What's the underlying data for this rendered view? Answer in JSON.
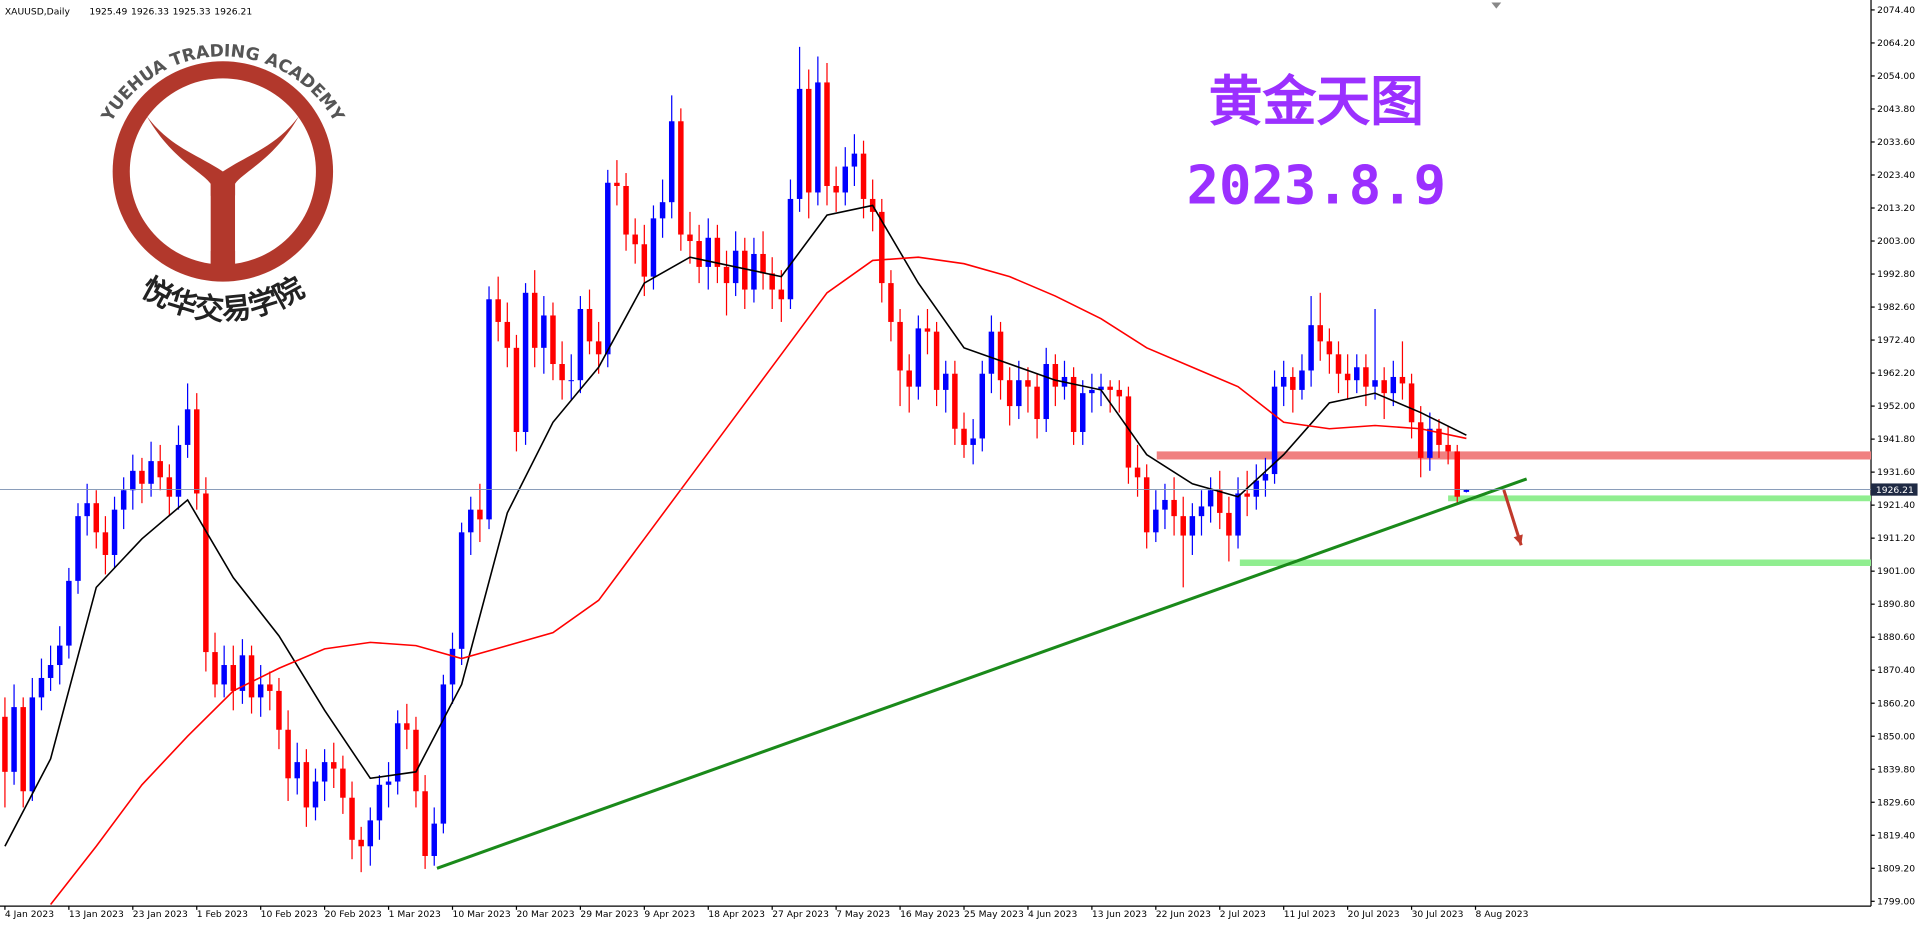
{
  "chart_data": {
    "type": "candlestick",
    "symbol": "XAUUSD,Daily",
    "title": "黄金天图",
    "subtitle": "2023.8.9",
    "title_color": "#9b30ff",
    "watermark": {
      "top": "YUEHUA TRADING ACADEMY",
      "bottom": "悦华交易学院",
      "color": "#b2382c"
    },
    "up_color": "#0000ff",
    "down_color": "#ff0000",
    "ylim": [
      1797.5,
      2076.7
    ],
    "yticks": [
      {
        "value": 2074.4,
        "label": "2074.40"
      },
      {
        "value": 2064.2,
        "label": "2064.20"
      },
      {
        "value": 2054,
        "label": "2054.00"
      },
      {
        "value": 2043.8,
        "label": "2043.80"
      },
      {
        "value": 2033.6,
        "label": "2033.60"
      },
      {
        "value": 2023.4,
        "label": "2023.40"
      },
      {
        "value": 2013.2,
        "label": "2013.20"
      },
      {
        "value": 2003,
        "label": "2003.00"
      },
      {
        "value": 1992.8,
        "label": "1992.80"
      },
      {
        "value": 1982.6,
        "label": "1982.60"
      },
      {
        "value": 1972.4,
        "label": "1972.40"
      },
      {
        "value": 1962.2,
        "label": "1962.20"
      },
      {
        "value": 1952,
        "label": "1952.00"
      },
      {
        "value": 1941.8,
        "label": "1941.80"
      },
      {
        "value": 1931.6,
        "label": "1931.60"
      },
      {
        "value": 1921.4,
        "label": "1921.40"
      },
      {
        "value": 1911.2,
        "label": "1911.20"
      },
      {
        "value": 1901,
        "label": "1901.00"
      },
      {
        "value": 1890.8,
        "label": "1890.80"
      },
      {
        "value": 1880.6,
        "label": "1880.60"
      },
      {
        "value": 1870.4,
        "label": "1870.40"
      },
      {
        "value": 1860.2,
        "label": "1860.20"
      },
      {
        "value": 1850,
        "label": "1850.00"
      },
      {
        "value": 1839.8,
        "label": "1839.80"
      },
      {
        "value": 1829.6,
        "label": "1829.60"
      },
      {
        "value": 1819.4,
        "label": "1819.40"
      },
      {
        "value": 1809.2,
        "label": "1809.20"
      },
      {
        "value": 1799,
        "label": "1799.00"
      }
    ],
    "xlim": [
      -0.54,
      204.3
    ],
    "xticks": [
      {
        "value": 0,
        "label": "4 Jan 2023"
      },
      {
        "value": 7,
        "label": "13 Jan 2023"
      },
      {
        "value": 14,
        "label": "23 Jan 2023"
      },
      {
        "value": 21,
        "label": "1 Feb 2023"
      },
      {
        "value": 28,
        "label": "10 Feb 2023"
      },
      {
        "value": 35,
        "label": "20 Feb 2023"
      },
      {
        "value": 42,
        "label": "1 Mar 2023"
      },
      {
        "value": 49,
        "label": "10 Mar 2023"
      },
      {
        "value": 56,
        "label": "20 Mar 2023"
      },
      {
        "value": 63,
        "label": "29 Mar 2023"
      },
      {
        "value": 70,
        "label": "9 Apr 2023"
      },
      {
        "value": 77,
        "label": "18 Apr 2023"
      },
      {
        "value": 84,
        "label": "27 Apr 2023"
      },
      {
        "value": 91,
        "label": "7 May 2023"
      },
      {
        "value": 98,
        "label": "16 May 2023"
      },
      {
        "value": 105,
        "label": "25 May 2023"
      },
      {
        "value": 112,
        "label": "4 Jun 2023"
      },
      {
        "value": 119,
        "label": "13 Jun 2023"
      },
      {
        "value": 126,
        "label": "22 Jun 2023"
      },
      {
        "value": 133,
        "label": "2 Jul 2023"
      },
      {
        "value": 140,
        "label": "11 Jul 2023"
      },
      {
        "value": 147,
        "label": "20 Jul 2023"
      },
      {
        "value": 154,
        "label": "30 Jul 2023"
      },
      {
        "value": 161,
        "label": "8 Aug 2023"
      }
    ],
    "ohlc": [
      [
        1856,
        1862,
        1828,
        1839
      ],
      [
        1839,
        1866,
        1835,
        1859
      ],
      [
        1859,
        1862,
        1828,
        1833
      ],
      [
        1833,
        1868,
        1830,
        1862
      ],
      [
        1862,
        1874,
        1858,
        1868
      ],
      [
        1868,
        1878,
        1864,
        1872
      ],
      [
        1872,
        1884,
        1866,
        1878
      ],
      [
        1878,
        1902,
        1874,
        1898
      ],
      [
        1898,
        1922,
        1894,
        1918
      ],
      [
        1918,
        1928,
        1912,
        1922
      ],
      [
        1922,
        1926,
        1908,
        1913
      ],
      [
        1913,
        1918,
        1900,
        1906
      ],
      [
        1906,
        1924,
        1902,
        1920
      ],
      [
        1920,
        1930,
        1914,
        1926
      ],
      [
        1926,
        1937,
        1920,
        1932
      ],
      [
        1932,
        1936,
        1922,
        1928
      ],
      [
        1928,
        1941,
        1924,
        1935
      ],
      [
        1935,
        1940,
        1926,
        1930
      ],
      [
        1930,
        1934,
        1918,
        1924
      ],
      [
        1924,
        1946,
        1920,
        1940
      ],
      [
        1940,
        1959,
        1936,
        1951
      ],
      [
        1951,
        1956,
        1920,
        1925
      ],
      [
        1925,
        1930,
        1870,
        1876
      ],
      [
        1876,
        1882,
        1862,
        1866
      ],
      [
        1866,
        1878,
        1862,
        1872
      ],
      [
        1872,
        1878,
        1858,
        1864
      ],
      [
        1864,
        1880,
        1860,
        1875
      ],
      [
        1875,
        1878,
        1857,
        1862
      ],
      [
        1862,
        1872,
        1856,
        1866
      ],
      [
        1866,
        1870,
        1858,
        1864
      ],
      [
        1864,
        1868,
        1846,
        1852
      ],
      [
        1852,
        1858,
        1830,
        1837
      ],
      [
        1837,
        1848,
        1832,
        1842
      ],
      [
        1842,
        1846,
        1822,
        1828
      ],
      [
        1828,
        1840,
        1824,
        1836
      ],
      [
        1836,
        1846,
        1830,
        1842
      ],
      [
        1842,
        1848,
        1834,
        1840
      ],
      [
        1840,
        1844,
        1826,
        1831
      ],
      [
        1831,
        1836,
        1812,
        1818
      ],
      [
        1818,
        1822,
        1808,
        1816
      ],
      [
        1816,
        1828,
        1810,
        1824
      ],
      [
        1824,
        1838,
        1818,
        1835
      ],
      [
        1835,
        1842,
        1828,
        1836
      ],
      [
        1836,
        1858,
        1832,
        1854
      ],
      [
        1854,
        1860,
        1846,
        1852
      ],
      [
        1852,
        1856,
        1828,
        1833
      ],
      [
        1833,
        1838,
        1809,
        1813
      ],
      [
        1813,
        1828,
        1810,
        1823
      ],
      [
        1823,
        1869,
        1820,
        1866
      ],
      [
        1866,
        1882,
        1860,
        1877
      ],
      [
        1877,
        1916,
        1872,
        1913
      ],
      [
        1913,
        1924,
        1906,
        1920
      ],
      [
        1920,
        1928,
        1910,
        1917
      ],
      [
        1917,
        1989,
        1914,
        1985
      ],
      [
        1985,
        1992,
        1972,
        1978
      ],
      [
        1978,
        1984,
        1964,
        1970
      ],
      [
        1970,
        1974,
        1938,
        1944
      ],
      [
        1944,
        1990,
        1940,
        1987
      ],
      [
        1987,
        1994,
        1964,
        1970
      ],
      [
        1970,
        1986,
        1962,
        1980
      ],
      [
        1980,
        1984,
        1960,
        1965
      ],
      [
        1965,
        1972,
        1954,
        1960
      ],
      [
        1960,
        1968,
        1954,
        1960
      ],
      [
        1960,
        1986,
        1956,
        1982
      ],
      [
        1982,
        1988,
        1968,
        1972
      ],
      [
        1972,
        1978,
        1962,
        1968
      ],
      [
        1968,
        2025,
        1964,
        2021
      ],
      [
        2021,
        2028,
        2014,
        2020
      ],
      [
        2020,
        2024,
        2000,
        2005
      ],
      [
        2005,
        2010,
        1996,
        2002
      ],
      [
        2002,
        2008,
        1986,
        1992
      ],
      [
        1992,
        2014,
        1988,
        2010
      ],
      [
        2010,
        2022,
        2004,
        2015
      ],
      [
        2015,
        2048,
        2010,
        2040
      ],
      [
        2040,
        2044,
        2000,
        2005
      ],
      [
        2005,
        2012,
        1996,
        2003
      ],
      [
        2003,
        2008,
        1990,
        1995
      ],
      [
        1995,
        2010,
        1988,
        2004
      ],
      [
        2004,
        2008,
        1990,
        1995
      ],
      [
        1995,
        2000,
        1980,
        1990
      ],
      [
        1990,
        2006,
        1986,
        2000
      ],
      [
        2000,
        2004,
        1982,
        1988
      ],
      [
        1988,
        2004,
        1984,
        1999
      ],
      [
        1999,
        2006,
        1988,
        1993
      ],
      [
        1993,
        1998,
        1982,
        1988
      ],
      [
        1988,
        1994,
        1978,
        1985
      ],
      [
        1985,
        2022,
        1982,
        2016
      ],
      [
        2016,
        2063,
        2012,
        2050
      ],
      [
        2050,
        2056,
        2010,
        2018
      ],
      [
        2018,
        2060,
        2014,
        2052
      ],
      [
        2052,
        2058,
        2014,
        2020
      ],
      [
        2020,
        2026,
        2012,
        2018
      ],
      [
        2018,
        2032,
        2014,
        2026
      ],
      [
        2026,
        2036,
        2020,
        2030
      ],
      [
        2030,
        2034,
        2010,
        2016
      ],
      [
        2016,
        2022,
        2006,
        2012
      ],
      [
        2012,
        2016,
        1984,
        1990
      ],
      [
        1990,
        1994,
        1972,
        1978
      ],
      [
        1978,
        1982,
        1952,
        1963
      ],
      [
        1963,
        1968,
        1950,
        1958
      ],
      [
        1958,
        1980,
        1954,
        1976
      ],
      [
        1976,
        1982,
        1968,
        1975
      ],
      [
        1975,
        1978,
        1952,
        1957
      ],
      [
        1957,
        1966,
        1950,
        1962
      ],
      [
        1962,
        1966,
        1940,
        1945
      ],
      [
        1945,
        1950,
        1936,
        1940
      ],
      [
        1940,
        1948,
        1934,
        1942
      ],
      [
        1942,
        1966,
        1938,
        1962
      ],
      [
        1962,
        1980,
        1956,
        1975
      ],
      [
        1975,
        1978,
        1954,
        1960
      ],
      [
        1960,
        1964,
        1946,
        1952
      ],
      [
        1952,
        1966,
        1948,
        1960
      ],
      [
        1960,
        1964,
        1950,
        1958
      ],
      [
        1958,
        1962,
        1942,
        1948
      ],
      [
        1948,
        1970,
        1944,
        1965
      ],
      [
        1965,
        1968,
        1952,
        1958
      ],
      [
        1958,
        1966,
        1954,
        1961
      ],
      [
        1961,
        1964,
        1940,
        1944
      ],
      [
        1944,
        1960,
        1940,
        1956
      ],
      [
        1956,
        1962,
        1950,
        1957
      ],
      [
        1957,
        1962,
        1952,
        1958
      ],
      [
        1958,
        1960,
        1950,
        1957
      ],
      [
        1957,
        1960,
        1950,
        1955
      ],
      [
        1955,
        1958,
        1928,
        1933
      ],
      [
        1933,
        1940,
        1924,
        1930
      ],
      [
        1930,
        1934,
        1908,
        1913
      ],
      [
        1913,
        1926,
        1910,
        1920
      ],
      [
        1920,
        1928,
        1914,
        1923
      ],
      [
        1923,
        1930,
        1912,
        1918
      ],
      [
        1918,
        1924,
        1896,
        1912
      ],
      [
        1912,
        1922,
        1906,
        1918
      ],
      [
        1918,
        1926,
        1912,
        1921
      ],
      [
        1921,
        1930,
        1916,
        1926
      ],
      [
        1926,
        1932,
        1914,
        1919
      ],
      [
        1919,
        1924,
        1904,
        1912
      ],
      [
        1912,
        1930,
        1908,
        1925
      ],
      [
        1925,
        1932,
        1918,
        1924
      ],
      [
        1924,
        1934,
        1920,
        1929
      ],
      [
        1929,
        1936,
        1924,
        1931
      ],
      [
        1931,
        1963,
        1928,
        1958
      ],
      [
        1958,
        1966,
        1952,
        1961
      ],
      [
        1961,
        1964,
        1950,
        1957
      ],
      [
        1957,
        1968,
        1954,
        1963
      ],
      [
        1963,
        1986,
        1958,
        1977
      ],
      [
        1977,
        1987,
        1966,
        1972
      ],
      [
        1972,
        1976,
        1962,
        1968
      ],
      [
        1968,
        1972,
        1956,
        1962
      ],
      [
        1962,
        1968,
        1954,
        1960
      ],
      [
        1960,
        1968,
        1956,
        1964
      ],
      [
        1964,
        1968,
        1952,
        1958
      ],
      [
        1958,
        1982,
        1954,
        1960
      ],
      [
        1960,
        1964,
        1948,
        1956
      ],
      [
        1956,
        1966,
        1952,
        1961
      ],
      [
        1961,
        1972,
        1954,
        1959
      ],
      [
        1959,
        1962,
        1942,
        1947
      ],
      [
        1947,
        1952,
        1930,
        1936
      ],
      [
        1936,
        1950,
        1932,
        1945
      ],
      [
        1945,
        1948,
        1936,
        1940
      ],
      [
        1940,
        1946,
        1934,
        1938
      ],
      [
        1938,
        1940,
        1922,
        1924
      ],
      [
        1925.49,
        1926.33,
        1925.33,
        1926.21
      ]
    ],
    "indicators": [
      {
        "color": "#000000",
        "x": [
          0,
          5,
          10,
          15,
          20,
          25,
          30,
          35,
          40,
          45,
          50,
          55,
          60,
          65,
          70,
          75,
          80,
          85,
          90,
          95,
          100,
          105,
          110,
          115,
          120,
          125,
          130,
          135,
          140,
          145,
          150,
          155,
          160
        ],
        "values": [
          1816,
          1843,
          1896,
          1911,
          1923,
          1899,
          1881,
          1858,
          1837,
          1839,
          1866,
          1919,
          1947,
          1964,
          1990,
          1998,
          1995,
          1992,
          2011,
          2014,
          1990,
          1970,
          1965,
          1960,
          1957,
          1937,
          1928,
          1924,
          1937,
          1953,
          1956,
          1950,
          1943
        ]
      },
      {
        "color": "#ff0000",
        "x": [
          5,
          10,
          15,
          20,
          25,
          30,
          35,
          40,
          45,
          50,
          55,
          60,
          65,
          70,
          75,
          80,
          85,
          90,
          95,
          100,
          105,
          110,
          115,
          120,
          125,
          130,
          135,
          140,
          145,
          150,
          155,
          160
        ],
        "values": [
          1798,
          1816,
          1835,
          1850,
          1864,
          1871,
          1877,
          1879,
          1878,
          1874,
          1878,
          1882,
          1892,
          1911,
          1930,
          1949,
          1968,
          1987,
          1997,
          1998,
          1996,
          1992,
          1986,
          1979,
          1970,
          1964,
          1958,
          1947,
          1945,
          1946,
          1945,
          1942
        ]
      }
    ],
    "trendline": {
      "color": "#1a8a1a",
      "x": [
        47.3,
        166.6
      ],
      "values": [
        1809.2,
        1929.5
      ]
    },
    "zones": [
      {
        "color": "#f08080",
        "x0": 126.1,
        "ylim": [
          1935.5,
          1938
        ]
      },
      {
        "color": "#90ee90",
        "x0": 158,
        "ylim": [
          1922.6,
          1924.4
        ]
      },
      {
        "color": "#90ee90",
        "x0": 135.2,
        "ylim": [
          1902.6,
          1904.6
        ]
      }
    ],
    "arrow": {
      "color": "#c0392b",
      "x": [
        164.1,
        166
      ],
      "values": [
        1926.1,
        1909
      ]
    }
  }
}
